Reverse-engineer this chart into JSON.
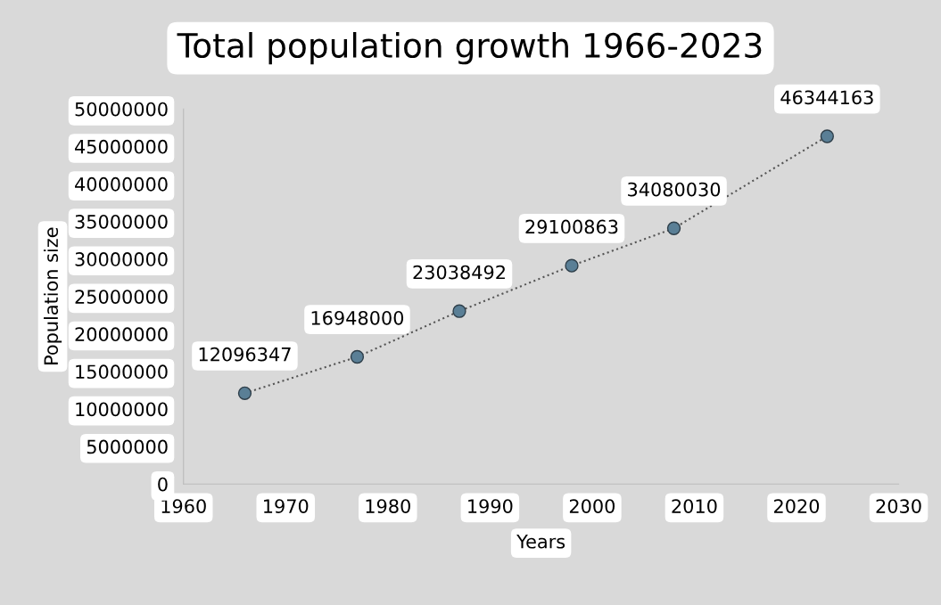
{
  "chart_data": {
    "type": "line",
    "title": "Total population growth 1966-2023",
    "xlabel": "Years",
    "ylabel": "Population size",
    "x": [
      1966,
      1977,
      1987,
      1998,
      2008,
      2023
    ],
    "series": [
      {
        "color": "#5a7f96",
        "values": [
          12096347,
          16948000,
          23038492,
          29100863,
          34080030,
          46344163
        ]
      }
    ],
    "data_labels": true,
    "marker": "circle",
    "line_style": "dotted",
    "grid": false,
    "legend": false,
    "xlim": [
      1960,
      2030
    ],
    "xticks": [
      1960,
      1970,
      1980,
      1990,
      2000,
      2010,
      2020,
      2030
    ],
    "ylim": [
      0,
      50000000
    ],
    "yticks": [
      0,
      5000000,
      10000000,
      15000000,
      20000000,
      25000000,
      30000000,
      35000000,
      40000000,
      45000000,
      50000000
    ]
  }
}
